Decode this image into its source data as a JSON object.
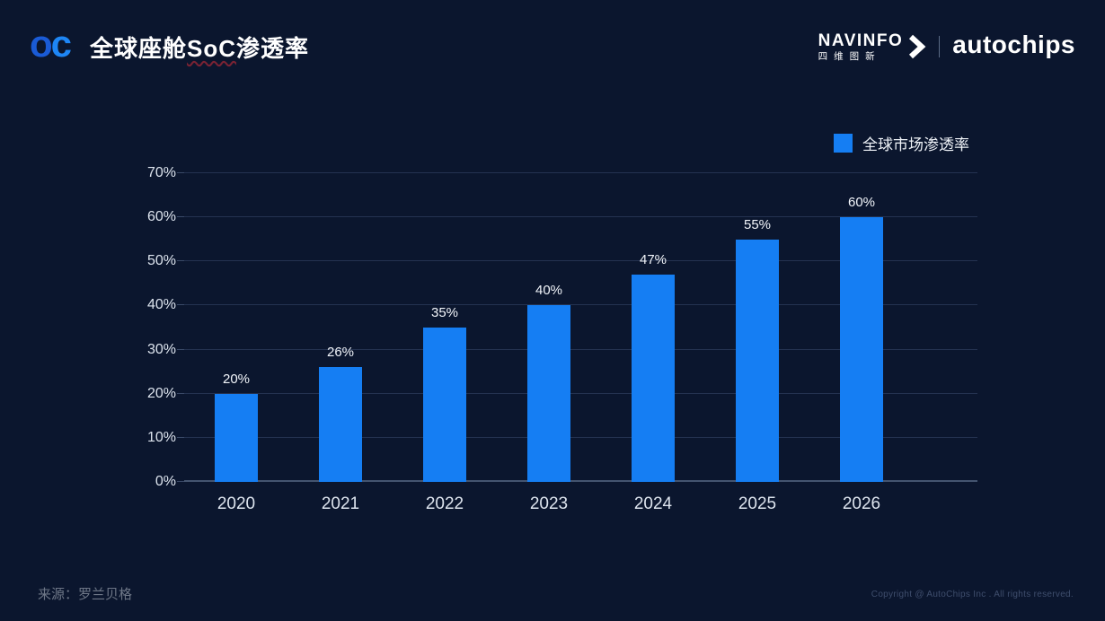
{
  "header": {
    "logo_o": "o",
    "logo_c": "c",
    "title_pre": "全球座舱",
    "title_mid": "SoC",
    "title_post": "渗透率",
    "brand": {
      "navinfo_en": "NAVINFO",
      "navinfo_cn": "四维图新",
      "autochips": "autochips"
    }
  },
  "legend": {
    "label": "全球市场渗透率",
    "color": "#157EF3"
  },
  "chart_data": {
    "type": "bar",
    "title": "全球座舱SoC渗透率",
    "categories": [
      "2020",
      "2021",
      "2022",
      "2023",
      "2024",
      "2025",
      "2026"
    ],
    "values": [
      20,
      26,
      35,
      40,
      47,
      55,
      60
    ],
    "value_labels": [
      "20%",
      "26%",
      "35%",
      "40%",
      "47%",
      "55%",
      "60%"
    ],
    "y_ticks": [
      "0%",
      "10%",
      "20%",
      "30%",
      "40%",
      "50%",
      "60%",
      "70%"
    ],
    "ylim": [
      0,
      70
    ],
    "xlabel": "",
    "ylabel": "",
    "grid": true,
    "legend_position": "top-right",
    "legend": [
      "全球市场渗透率"
    ],
    "bar_color": "#157EF3"
  },
  "footer": {
    "source": "来源：罗兰贝格",
    "copyright": "Copyright @ AutoChips Inc . All rights reserved."
  },
  "colors": {
    "background": "#0B162E",
    "accent_blue": "#157EF3",
    "wavy_underline": "#7B2233"
  }
}
